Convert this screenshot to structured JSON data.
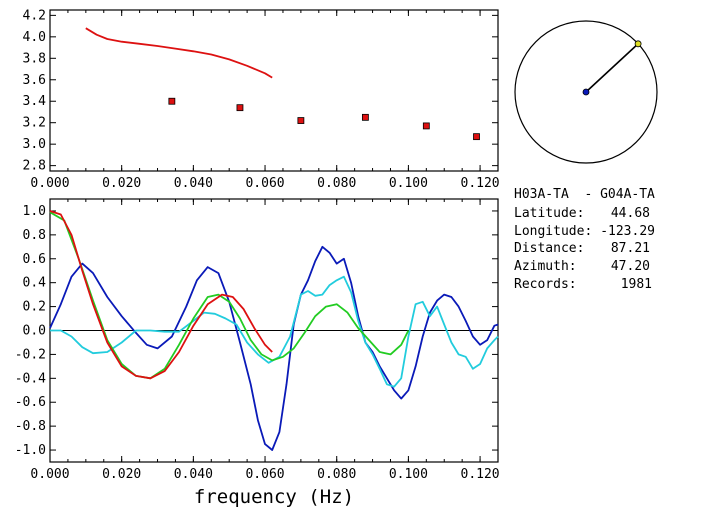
{
  "chart_data": [
    {
      "type": "scatter",
      "xlim": [
        0.0,
        0.125
      ],
      "ylim": [
        2.75,
        4.25
      ],
      "xticks": [
        "0.000",
        "0.020",
        "0.040",
        "0.060",
        "0.080",
        "0.100",
        "0.120"
      ],
      "xtick_values": [
        0.0,
        0.02,
        0.04,
        0.06,
        0.08,
        0.1,
        0.12
      ],
      "yticks": [
        "2.8",
        "3.0",
        "3.2",
        "3.4",
        "3.6",
        "3.8",
        "4.0",
        "4.2"
      ],
      "ytick_values": [
        2.8,
        3.0,
        3.2,
        3.4,
        3.6,
        3.8,
        4.0,
        4.2
      ],
      "series": [
        {
          "kind": "line",
          "color": "#dd1111",
          "x": [
            0.01,
            0.013,
            0.016,
            0.02,
            0.025,
            0.03,
            0.035,
            0.04,
            0.045,
            0.05,
            0.055,
            0.06,
            0.062
          ],
          "y": [
            4.08,
            4.02,
            3.98,
            3.955,
            3.935,
            3.915,
            3.89,
            3.865,
            3.835,
            3.79,
            3.73,
            3.66,
            3.62
          ]
        },
        {
          "kind": "markers",
          "color": "#dd1111",
          "x": [
            0.034,
            0.053,
            0.07,
            0.088,
            0.105,
            0.119
          ],
          "y": [
            3.4,
            3.34,
            3.22,
            3.25,
            3.17,
            3.07
          ]
        }
      ]
    },
    {
      "type": "line",
      "xlim": [
        0.0,
        0.125
      ],
      "ylim": [
        -1.1,
        1.1
      ],
      "xticks": [
        "0.000",
        "0.020",
        "0.040",
        "0.060",
        "0.080",
        "0.100",
        "0.120"
      ],
      "xtick_values": [
        0.0,
        0.02,
        0.04,
        0.06,
        0.08,
        0.1,
        0.12
      ],
      "yticks": [
        "1.0",
        "0.8",
        "0.6",
        "0.4",
        "0.2",
        "0.0",
        "-0.2",
        "-0.4",
        "-0.6",
        "-0.8",
        "-1.0"
      ],
      "ytick_values": [
        1.0,
        0.8,
        0.6,
        0.4,
        0.2,
        0.0,
        -0.2,
        -0.4,
        -0.6,
        -0.8,
        -1.0
      ],
      "xlabel": "frequency (Hz)",
      "zero_line": true,
      "series": [
        {
          "color": "#0a1ab8",
          "x": [
            0.0,
            0.003,
            0.006,
            0.009,
            0.012,
            0.016,
            0.02,
            0.024,
            0.027,
            0.03,
            0.034,
            0.038,
            0.041,
            0.044,
            0.047,
            0.05,
            0.053,
            0.056,
            0.058,
            0.06,
            0.062,
            0.064,
            0.066,
            0.068,
            0.07,
            0.072,
            0.074,
            0.076,
            0.078,
            0.08,
            0.082,
            0.084,
            0.086,
            0.088,
            0.09,
            0.092,
            0.094,
            0.096,
            0.098,
            0.1,
            0.102,
            0.104,
            0.106,
            0.108,
            0.11,
            0.112,
            0.114,
            0.116,
            0.118,
            0.12,
            0.122,
            0.124,
            0.125
          ],
          "y": [
            0.02,
            0.22,
            0.45,
            0.56,
            0.48,
            0.28,
            0.12,
            -0.02,
            -0.12,
            -0.15,
            -0.05,
            0.2,
            0.42,
            0.53,
            0.48,
            0.24,
            -0.1,
            -0.45,
            -0.75,
            -0.95,
            -1.0,
            -0.85,
            -0.45,
            0.05,
            0.3,
            0.42,
            0.58,
            0.7,
            0.65,
            0.56,
            0.6,
            0.4,
            0.12,
            -0.1,
            -0.18,
            -0.3,
            -0.4,
            -0.5,
            -0.57,
            -0.5,
            -0.3,
            -0.05,
            0.15,
            0.25,
            0.3,
            0.28,
            0.2,
            0.08,
            -0.05,
            -0.12,
            -0.08,
            0.04,
            0.05
          ]
        },
        {
          "color": "#22ccdd",
          "x": [
            0.0,
            0.003,
            0.006,
            0.009,
            0.012,
            0.016,
            0.02,
            0.024,
            0.028,
            0.032,
            0.036,
            0.04,
            0.043,
            0.046,
            0.049,
            0.052,
            0.055,
            0.058,
            0.061,
            0.064,
            0.067,
            0.07,
            0.072,
            0.074,
            0.076,
            0.078,
            0.08,
            0.082,
            0.084,
            0.086,
            0.088,
            0.09,
            0.092,
            0.094,
            0.096,
            0.098,
            0.1,
            0.102,
            0.104,
            0.106,
            0.108,
            0.11,
            0.112,
            0.114,
            0.116,
            0.118,
            0.12,
            0.122,
            0.124,
            0.125
          ],
          "y": [
            0.0,
            0.0,
            -0.05,
            -0.14,
            -0.19,
            -0.18,
            -0.1,
            0.0,
            0.0,
            -0.01,
            -0.01,
            0.08,
            0.15,
            0.14,
            0.1,
            0.05,
            -0.1,
            -0.2,
            -0.27,
            -0.22,
            -0.05,
            0.3,
            0.33,
            0.29,
            0.3,
            0.38,
            0.42,
            0.45,
            0.32,
            0.08,
            -0.1,
            -0.2,
            -0.32,
            -0.45,
            -0.47,
            -0.4,
            -0.05,
            0.22,
            0.24,
            0.12,
            0.2,
            0.05,
            -0.1,
            -0.2,
            -0.22,
            -0.32,
            -0.28,
            -0.15,
            -0.08,
            -0.05
          ]
        },
        {
          "color": "#22cc22",
          "x": [
            0.0,
            0.004,
            0.008,
            0.012,
            0.016,
            0.02,
            0.024,
            0.028,
            0.032,
            0.036,
            0.04,
            0.044,
            0.047,
            0.05,
            0.053,
            0.056,
            0.059,
            0.062,
            0.065,
            0.068,
            0.071,
            0.074,
            0.077,
            0.08,
            0.083,
            0.086,
            0.089,
            0.092,
            0.095,
            0.098,
            0.1
          ],
          "y": [
            0.99,
            0.92,
            0.6,
            0.25,
            -0.08,
            -0.28,
            -0.38,
            -0.4,
            -0.32,
            -0.12,
            0.1,
            0.28,
            0.3,
            0.24,
            0.1,
            -0.08,
            -0.2,
            -0.25,
            -0.22,
            -0.15,
            -0.02,
            0.12,
            0.2,
            0.22,
            0.15,
            0.02,
            -0.08,
            -0.18,
            -0.2,
            -0.12,
            0.0
          ]
        },
        {
          "color": "#dd1111",
          "x": [
            0.0,
            0.003,
            0.006,
            0.009,
            0.012,
            0.016,
            0.02,
            0.024,
            0.028,
            0.032,
            0.036,
            0.04,
            0.044,
            0.048,
            0.051,
            0.054,
            0.057,
            0.06,
            0.062
          ],
          "y": [
            1.0,
            0.97,
            0.8,
            0.5,
            0.22,
            -0.1,
            -0.3,
            -0.38,
            -0.4,
            -0.34,
            -0.18,
            0.04,
            0.22,
            0.3,
            0.28,
            0.18,
            0.02,
            -0.12,
            -0.18
          ]
        }
      ]
    }
  ],
  "info": {
    "station_pair": "H03A-TA  - G04A-TA",
    "latitude_label": "Latitude:",
    "latitude_value": "44.68",
    "longitude_label": "Longitude:",
    "longitude_value": "-123.29",
    "distance_label": "Distance:",
    "distance_value": "87.21",
    "azimuth_label": "Azimuth:",
    "azimuth_value": "47.20",
    "records_label": "Records:",
    "records_value": "1981"
  },
  "azimuth_dial": {
    "azimuth_deg": 47.2,
    "circle_color": "#000000",
    "center_dot_color": "#0a1ab8",
    "end_dot_color": "#dddd22"
  }
}
